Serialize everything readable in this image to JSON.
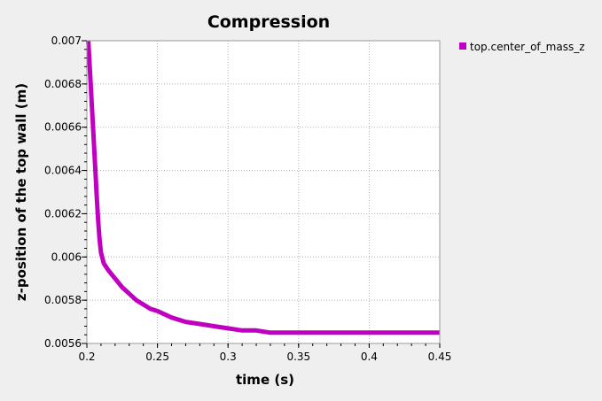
{
  "chart_data": {
    "type": "line",
    "title": "Compression",
    "xlabel": "time (s)",
    "ylabel": "z-position of the top wall (m)",
    "xlim": [
      0.2,
      0.45
    ],
    "ylim": [
      0.0056,
      0.007
    ],
    "x_ticks": [
      "0.2",
      "0.25",
      "0.3",
      "0.35",
      "0.4",
      "0.45"
    ],
    "y_ticks": [
      "0.0056",
      "0.0058",
      "0.006",
      "0.0062",
      "0.0064",
      "0.0066",
      "0.0068",
      "0.007"
    ],
    "grid": true,
    "legend": "top-right, outside plot",
    "series": [
      {
        "name": "top.center_of_mass_z",
        "color": "#c000c0",
        "x": [
          0.201,
          0.202,
          0.203,
          0.204,
          0.205,
          0.206,
          0.207,
          0.208,
          0.209,
          0.21,
          0.212,
          0.215,
          0.22,
          0.225,
          0.23,
          0.235,
          0.24,
          0.245,
          0.25,
          0.26,
          0.27,
          0.28,
          0.29,
          0.3,
          0.31,
          0.32,
          0.33,
          0.34,
          0.35,
          0.37,
          0.4,
          0.42,
          0.45
        ],
        "y": [
          0.007,
          0.00688,
          0.00676,
          0.00664,
          0.00652,
          0.0064,
          0.00628,
          0.00617,
          0.00608,
          0.00602,
          0.00597,
          0.00594,
          0.0059,
          0.00586,
          0.00583,
          0.0058,
          0.00578,
          0.00576,
          0.00575,
          0.00572,
          0.0057,
          0.00569,
          0.00568,
          0.00567,
          0.00566,
          0.00566,
          0.00565,
          0.00565,
          0.00565,
          0.00565,
          0.00565,
          0.00565,
          0.00565
        ]
      }
    ]
  }
}
